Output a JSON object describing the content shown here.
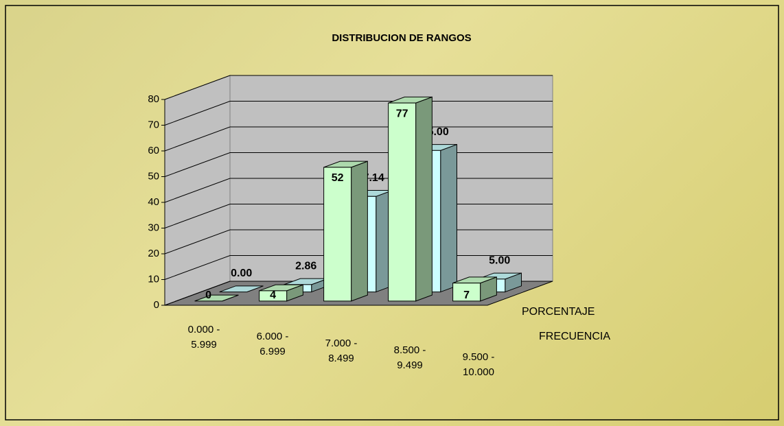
{
  "chart_data": {
    "type": "bar3d",
    "title": "DISTRIBUCION DE RANGOS",
    "categories": [
      "0.000 - 5.999",
      "6.000 - 6.999",
      "7.000 - 8.499",
      "8.500 - 9.499",
      "9.500 - 10.000"
    ],
    "series": [
      {
        "name": "FRECUENCIA",
        "color": "#ccffcc",
        "values": [
          0,
          4,
          52,
          77,
          7
        ]
      },
      {
        "name": "PORCENTAJE",
        "color": "#ccffff",
        "values": [
          0,
          2.86,
          37.14,
          55,
          5
        ],
        "value_labels": [
          "0.00",
          "2.86",
          "37.14",
          "55.00",
          "5.00"
        ]
      }
    ],
    "ylim": [
      0,
      80
    ],
    "yticks": [
      0,
      10,
      20,
      30,
      40,
      50,
      60,
      70,
      80
    ],
    "grid": true
  }
}
